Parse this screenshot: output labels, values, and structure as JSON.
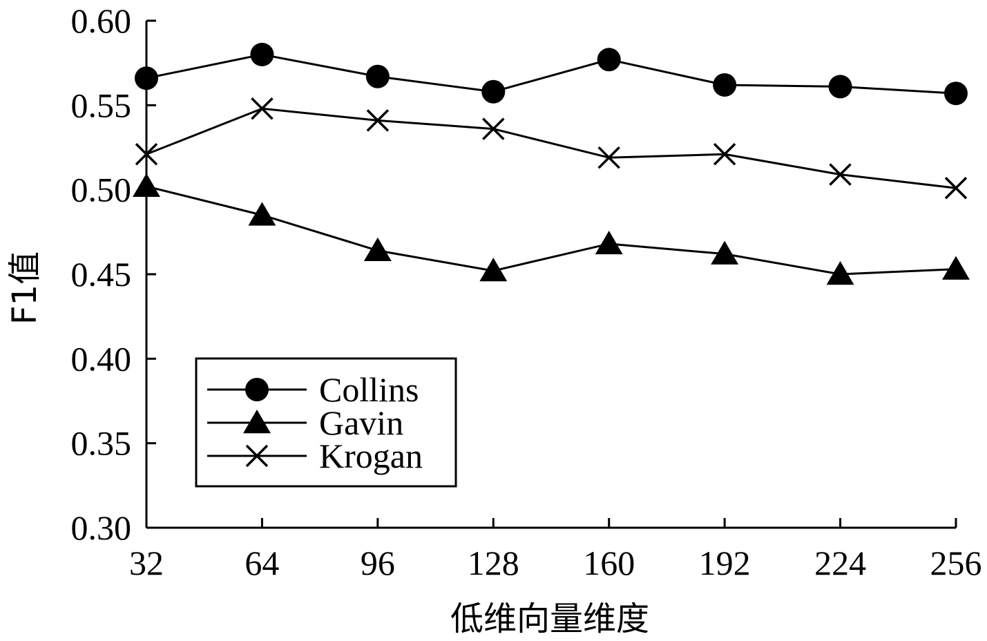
{
  "chart_data": {
    "type": "line",
    "xlabel": "低维向量维度",
    "ylabel": "F1值",
    "x": [
      32,
      64,
      96,
      128,
      160,
      192,
      224,
      256
    ],
    "x_tick_labels": [
      "32",
      "64",
      "96",
      "128",
      "160",
      "192",
      "224",
      "256"
    ],
    "ylim": [
      0.3,
      0.6
    ],
    "y_ticks": [
      0.3,
      0.35,
      0.4,
      0.45,
      0.5,
      0.55,
      0.6
    ],
    "y_tick_labels": [
      "0.30",
      "0.35",
      "0.40",
      "0.45",
      "0.50",
      "0.55",
      "0.60"
    ],
    "grid": false,
    "legend_position": "bottom-left",
    "series": [
      {
        "name": "Collins",
        "marker": "circle",
        "values": [
          0.566,
          0.58,
          0.567,
          0.558,
          0.577,
          0.562,
          0.561,
          0.557
        ]
      },
      {
        "name": "Gavin",
        "marker": "triangle",
        "values": [
          0.502,
          0.485,
          0.464,
          0.452,
          0.468,
          0.462,
          0.45,
          0.453
        ]
      },
      {
        "name": "Krogan",
        "marker": "x",
        "values": [
          0.521,
          0.548,
          0.541,
          0.536,
          0.519,
          0.521,
          0.509,
          0.501
        ]
      }
    ]
  }
}
